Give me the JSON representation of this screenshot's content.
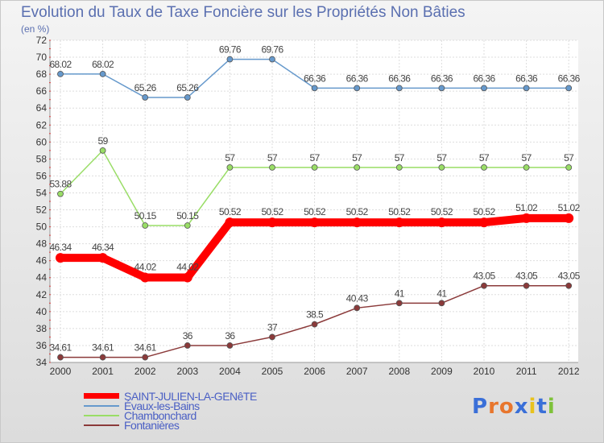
{
  "chart_data": {
    "type": "line",
    "title": "Evolution du Taux de Taxe Foncière sur les Propriétés Non Bâties",
    "subtitle": "(en %)",
    "categories": [
      "2000",
      "2001",
      "2002",
      "2003",
      "2004",
      "2005",
      "2006",
      "2007",
      "2008",
      "2009",
      "2010",
      "2011",
      "2012"
    ],
    "ylim": [
      34,
      72
    ],
    "yticks": [
      34,
      36,
      38,
      40,
      42,
      44,
      46,
      48,
      50,
      52,
      54,
      56,
      58,
      60,
      62,
      64,
      66,
      68,
      70,
      72
    ],
    "series": [
      {
        "name": "SAINT-JULIEN-LA-GENêTE",
        "color": "#ff0000",
        "values": [
          46.34,
          46.34,
          44.02,
          44.02,
          50.52,
          50.52,
          50.52,
          50.52,
          50.52,
          50.52,
          50.52,
          51.02,
          51.02
        ],
        "labels": [
          "46.34",
          "46.34",
          "44.02",
          "44.02",
          "50.52",
          "50.52",
          "50.52",
          "50.52",
          "50.52",
          "50.52",
          "50.52",
          "51.02",
          "51.02"
        ]
      },
      {
        "name": "Évaux-les-Bains",
        "color": "#6699cc",
        "values": [
          68.02,
          68.02,
          65.26,
          65.26,
          69.76,
          69.76,
          66.36,
          66.36,
          66.36,
          66.36,
          66.36,
          66.36,
          66.36
        ],
        "labels": [
          "68.02",
          "68.02",
          "65.26",
          "65.26",
          "69.76",
          "69.76",
          "66.36",
          "66.36",
          "66.36",
          "66.36",
          "66.36",
          "66.36",
          "66.36"
        ]
      },
      {
        "name": "Chambonchard",
        "color": "#99dd66",
        "values": [
          53.88,
          59,
          50.15,
          50.15,
          57,
          57,
          57,
          57,
          57,
          57,
          57,
          57,
          57
        ],
        "labels": [
          "53.88",
          "59",
          "50.15",
          "50.15",
          "57",
          "57",
          "57",
          "57",
          "57",
          "57",
          "57",
          "57",
          "57"
        ]
      },
      {
        "name": "Fontanières",
        "color": "#8b3a3a",
        "values": [
          34.61,
          34.61,
          34.61,
          36,
          36,
          37,
          38.5,
          40.43,
          41,
          41,
          43.05,
          43.05,
          43.05
        ],
        "labels": [
          "34.61",
          "34.61",
          "34.61",
          "36",
          "36",
          "37",
          "38.5",
          "40.43",
          "41",
          "41",
          "43.05",
          "43.05",
          "43.05"
        ]
      }
    ]
  },
  "logo_text": "Proxiti",
  "logo_colors": [
    "#3a6fd8",
    "#e8762d",
    "#e8762d",
    "#3a6fd8",
    "#e8c21d",
    "#3a6fd8",
    "#7ec23a"
  ]
}
